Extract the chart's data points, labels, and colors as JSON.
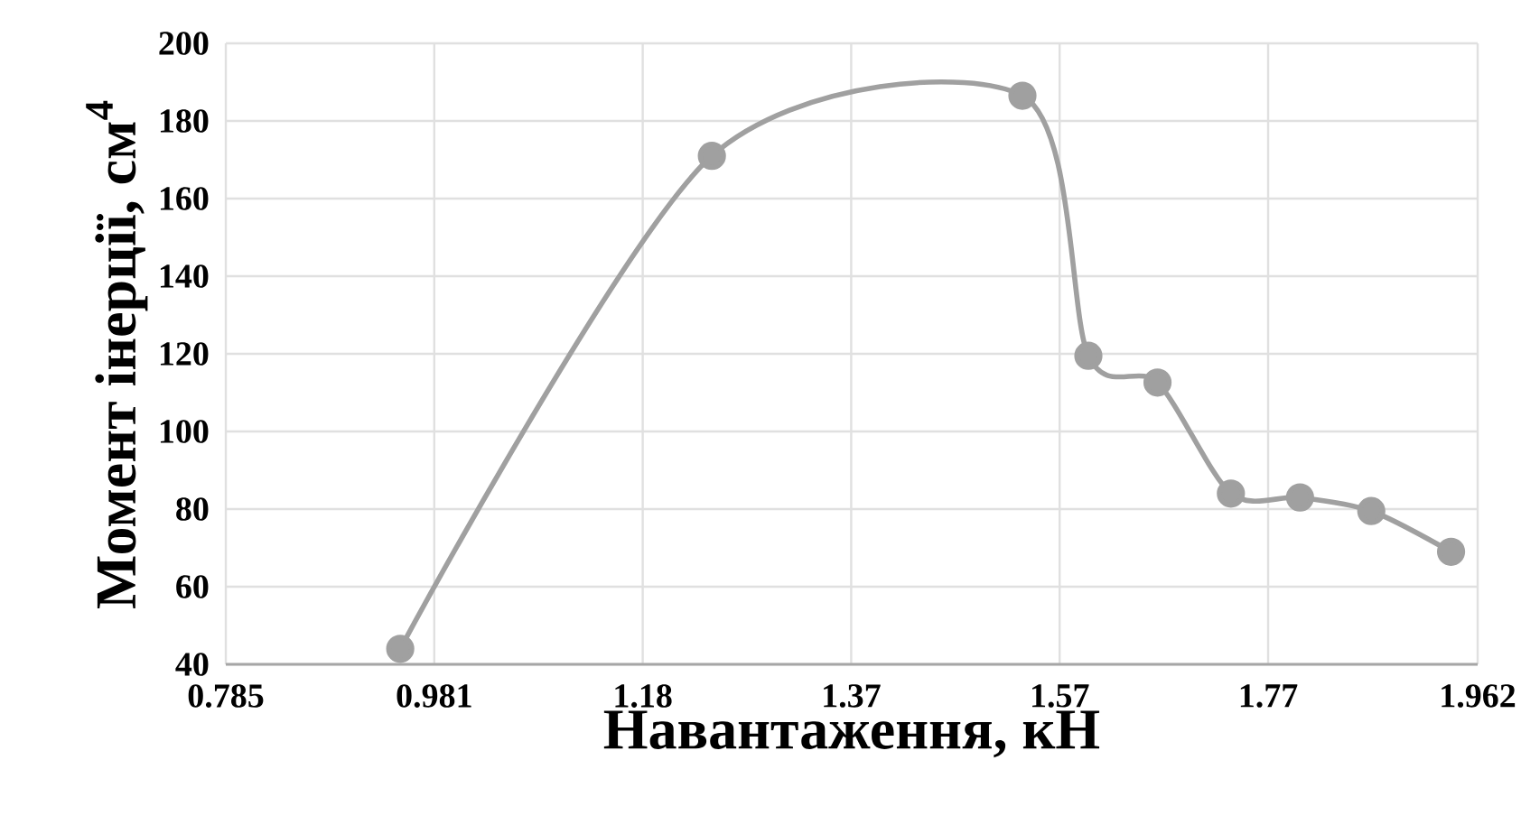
{
  "chart_data": {
    "type": "line",
    "xlabel": "Навантаження, кН",
    "ylabel": "Момент інерції, см$^{4}$",
    "series": [
      {
        "color": "#a0a0a0",
        "x": [
          0.949,
          1.242,
          1.534,
          1.596,
          1.661,
          1.73,
          1.795,
          1.862,
          1.937
        ],
        "values": [
          44,
          171,
          186.5,
          119.5,
          112.6,
          84,
          83,
          79.5,
          69
        ]
      }
    ],
    "xlim": [
      0.785,
      1.962
    ],
    "xticks": [
      0.785,
      0.981,
      {
        "value": 1.177,
        "label": "1.18"
      },
      {
        "value": 1.373,
        "label": "1.37"
      },
      {
        "value": 1.569,
        "label": "1.57"
      },
      {
        "value": 1.765,
        "label": "1.77"
      },
      1.962
    ],
    "ylim": [
      40,
      200
    ],
    "yticks": [
      40,
      60,
      80,
      100,
      120,
      140,
      160,
      180,
      200
    ],
    "grid": true,
    "marker": "circle",
    "line_style": "solid"
  }
}
